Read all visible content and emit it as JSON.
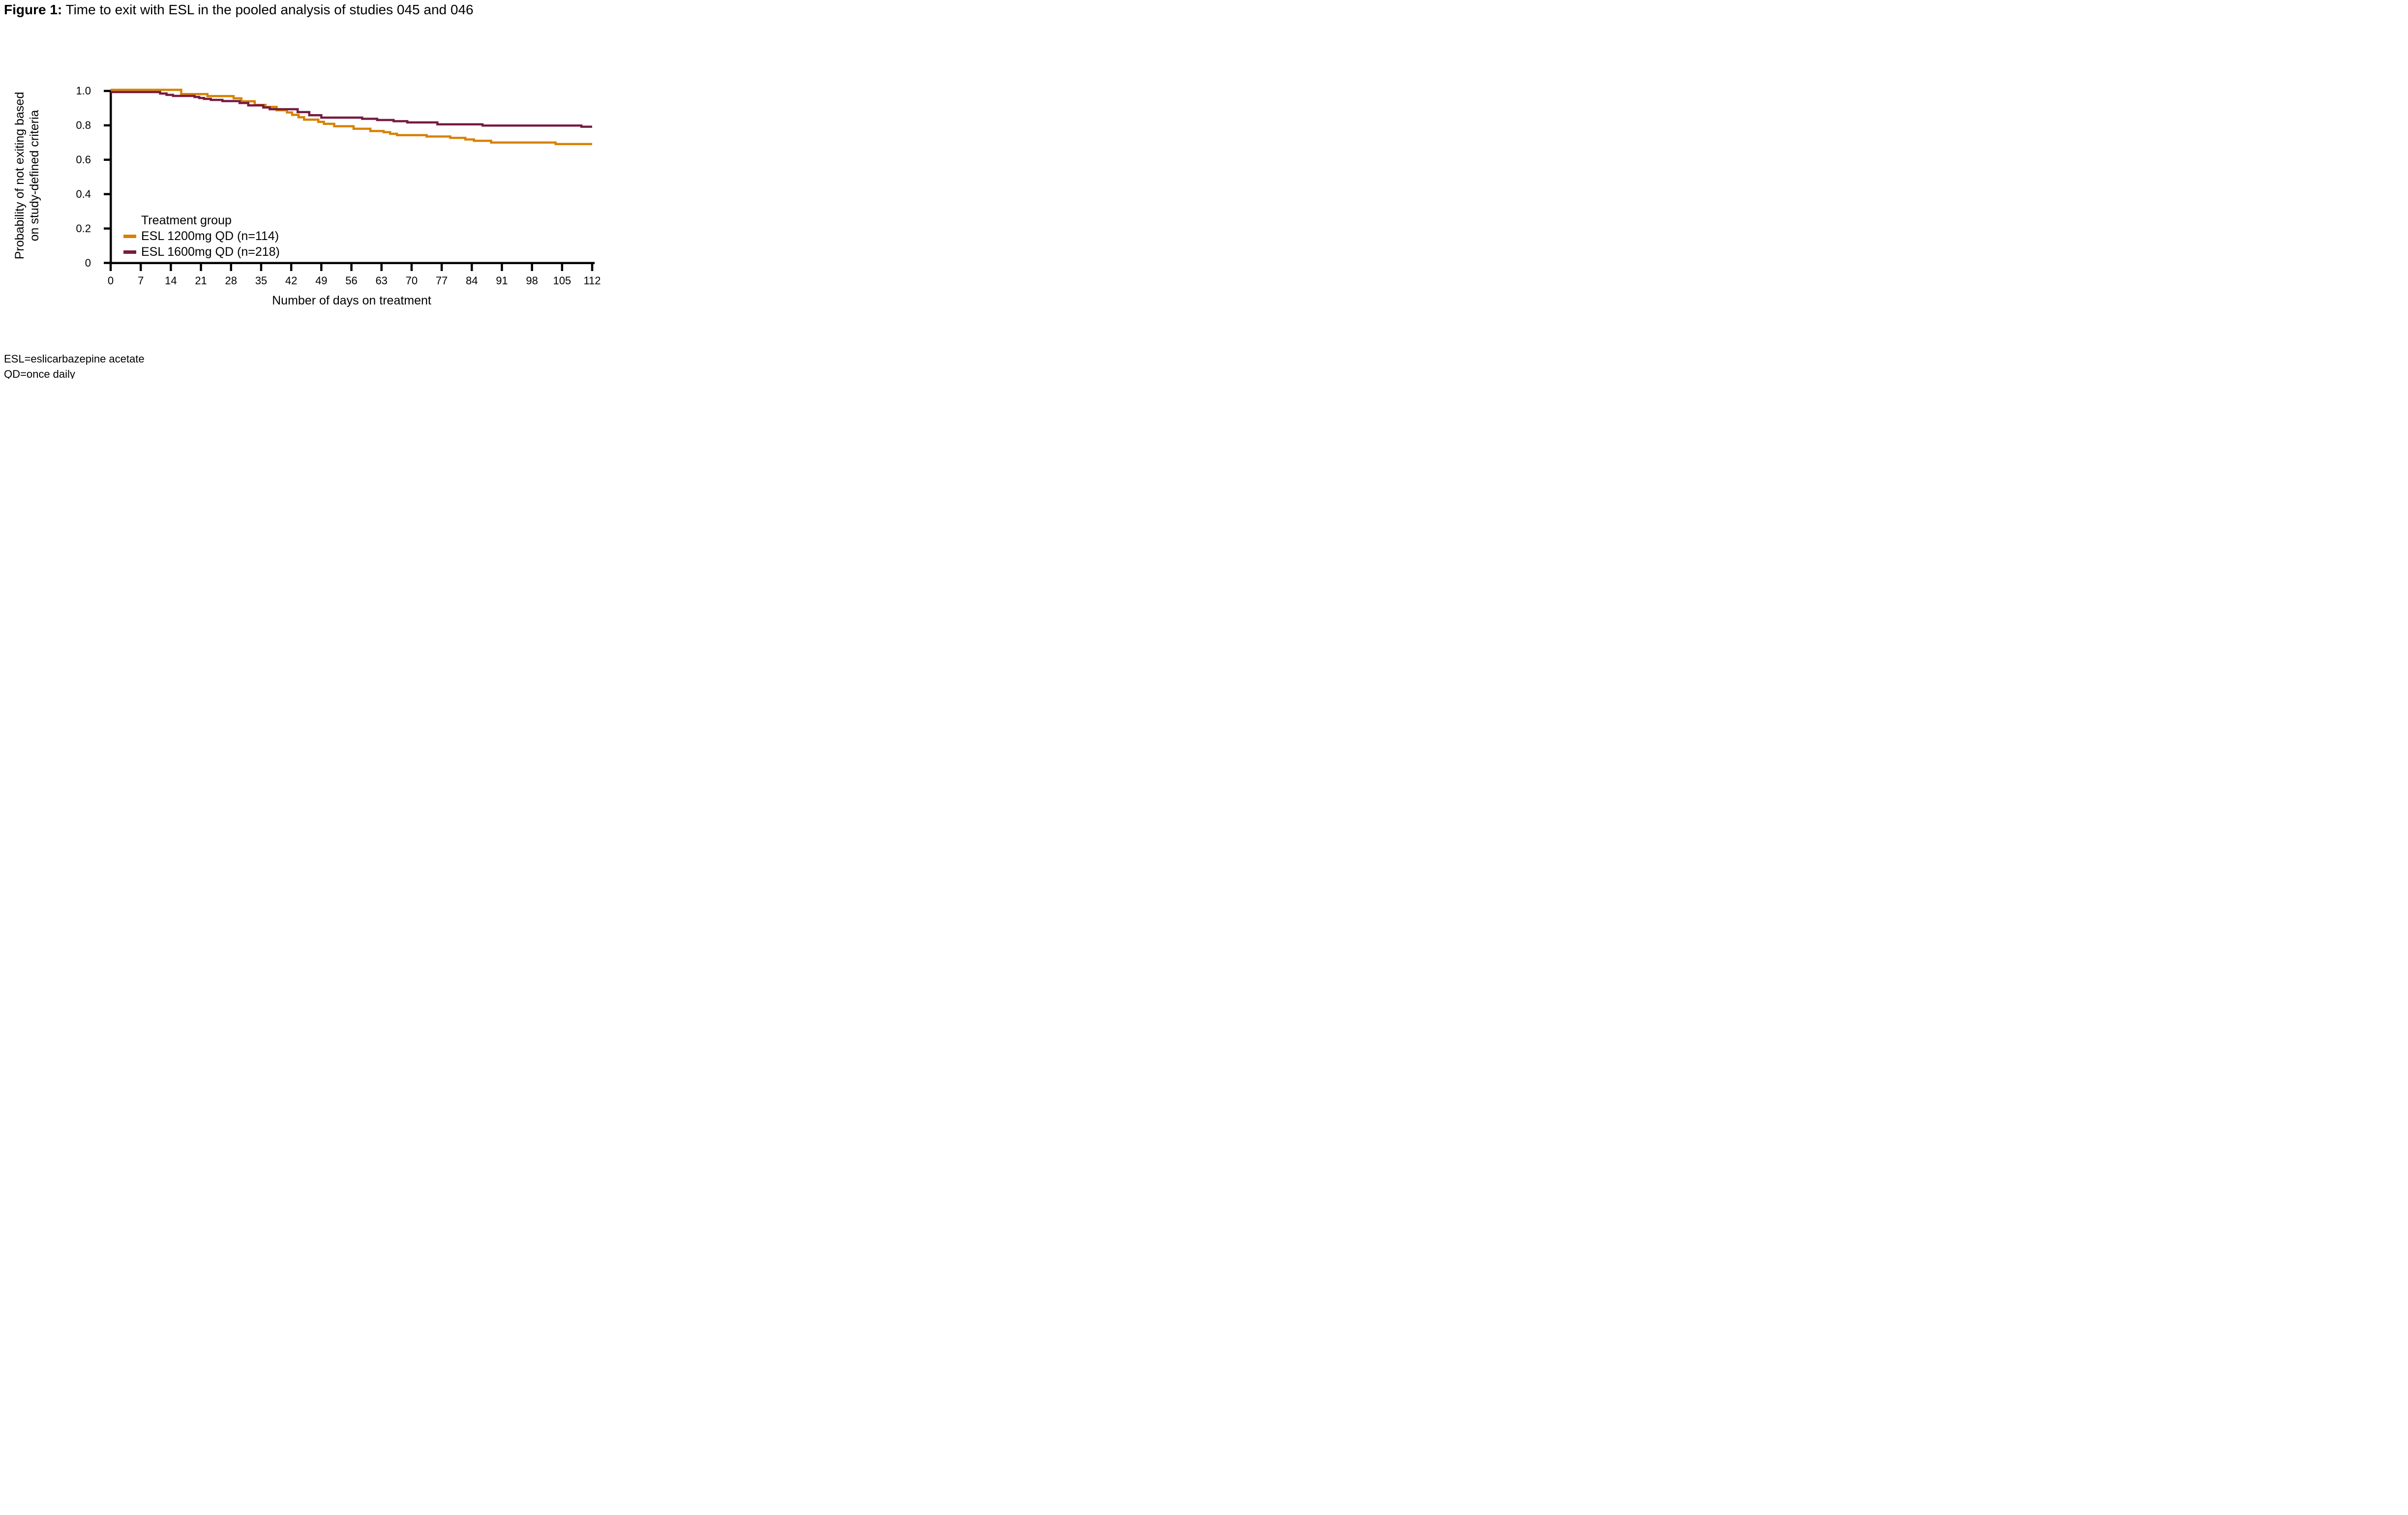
{
  "figure": {
    "title_label": "Figure 1:",
    "title_text": " Time to exit with ESL in the pooled analysis of studies 045 and 046",
    "footnotes": [
      "ESL=eslicarbazepine acetate",
      "QD=once daily"
    ]
  },
  "chart_data": {
    "type": "line",
    "subtype": "kaplan-meier-step",
    "title": "Time to exit with ESL in the pooled analysis of studies 045 and 046",
    "xlabel": "Number of days on treatment",
    "ylabel": "Probability of not exiting based on study-defined criteria",
    "ylabel_lines": [
      "Probability of not exiting based",
      "on study-defined criteria"
    ],
    "xlim": [
      0,
      112
    ],
    "ylim": [
      0,
      1.0
    ],
    "xticks": [
      0,
      7,
      14,
      21,
      28,
      35,
      42,
      49,
      56,
      63,
      70,
      77,
      84,
      91,
      98,
      105,
      112
    ],
    "yticks": [
      0,
      0.2,
      0.4,
      0.6,
      0.8,
      1.0
    ],
    "ytick_labels": [
      "0",
      "0.2",
      "0.4",
      "0.6",
      "0.8",
      "1.0"
    ],
    "grid": false,
    "axis_color": "#000000",
    "legend": {
      "title": "Treatment group",
      "position": "inside-lower-left"
    },
    "series": [
      {
        "name": "ESL 1200mg QD (n=114)",
        "color": "#D88100",
        "steps": [
          [
            0,
            1.0
          ],
          [
            16.4,
            0.982
          ],
          [
            22.5,
            0.97
          ],
          [
            28.6,
            0.957
          ],
          [
            30.4,
            0.94
          ],
          [
            33.5,
            0.919
          ],
          [
            36,
            0.907
          ],
          [
            38.6,
            0.888
          ],
          [
            41,
            0.875
          ],
          [
            42.2,
            0.861
          ],
          [
            43.7,
            0.847
          ],
          [
            45,
            0.833
          ],
          [
            48.3,
            0.82
          ],
          [
            49.6,
            0.809
          ],
          [
            52,
            0.795
          ],
          [
            56.5,
            0.78
          ],
          [
            60.4,
            0.767
          ],
          [
            63.5,
            0.76
          ],
          [
            65,
            0.751
          ],
          [
            66.6,
            0.743
          ],
          [
            73.5,
            0.735
          ],
          [
            79,
            0.727
          ],
          [
            82.5,
            0.718
          ],
          [
            84.5,
            0.71
          ],
          [
            88.5,
            0.7
          ],
          [
            103.5,
            0.691
          ],
          [
            112,
            0.691
          ]
        ]
      },
      {
        "name": "ESL 1600mg QD (n=218)",
        "color": "#771B40",
        "steps": [
          [
            0,
            1.0
          ],
          [
            11.5,
            0.985
          ],
          [
            13,
            0.977
          ],
          [
            14.5,
            0.971
          ],
          [
            19.5,
            0.965
          ],
          [
            20.6,
            0.959
          ],
          [
            21.7,
            0.954
          ],
          [
            23.3,
            0.948
          ],
          [
            26,
            0.941
          ],
          [
            30,
            0.93
          ],
          [
            32,
            0.916
          ],
          [
            35.5,
            0.904
          ],
          [
            37,
            0.894
          ],
          [
            43.5,
            0.877
          ],
          [
            46.2,
            0.859
          ],
          [
            49,
            0.845
          ],
          [
            58.5,
            0.838
          ],
          [
            62,
            0.831
          ],
          [
            65.8,
            0.824
          ],
          [
            69,
            0.817
          ],
          [
            76,
            0.806
          ],
          [
            86.5,
            0.799
          ],
          [
            109.5,
            0.792
          ],
          [
            112,
            0.792
          ]
        ]
      }
    ]
  }
}
